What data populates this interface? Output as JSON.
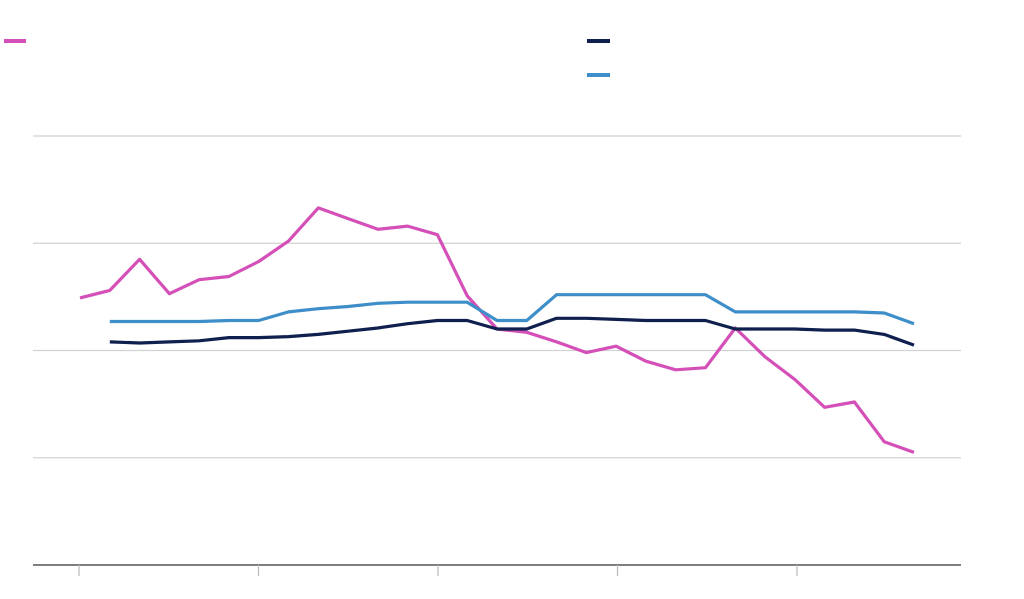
{
  "chart_data": {
    "type": "line",
    "title": "",
    "xlabel": "",
    "ylabel": "",
    "ylim": [
      0,
      4
    ],
    "y_gridlines": [
      1,
      2,
      3,
      4
    ],
    "grid": true,
    "legend_position": "top",
    "x_tick_count": 5,
    "series": [
      {
        "color": "#d44fb7",
        "x": [
          0,
          1,
          2,
          3,
          4,
          5,
          6,
          7,
          8,
          9,
          10,
          11,
          12,
          13,
          14,
          15,
          16,
          17,
          18,
          19,
          20,
          21,
          22,
          23,
          24,
          25,
          26,
          27,
          28
        ],
        "values": [
          2.49,
          2.56,
          2.85,
          2.53,
          2.66,
          2.69,
          2.83,
          3.02,
          3.33,
          3.23,
          3.13,
          3.16,
          3.08,
          2.51,
          2.2,
          2.17,
          2.08,
          1.98,
          2.04,
          1.9,
          1.82,
          1.84,
          2.21,
          1.94,
          1.73,
          1.47,
          1.52,
          1.15,
          1.05
        ]
      },
      {
        "color": "#0f1f4e",
        "x": [
          1,
          2,
          3,
          4,
          5,
          6,
          7,
          8,
          9,
          10,
          11,
          12,
          13,
          14,
          15,
          16,
          17,
          18,
          19,
          20,
          21,
          22,
          23,
          24,
          25,
          26,
          27,
          28
        ],
        "values": [
          2.08,
          2.07,
          2.08,
          2.09,
          2.12,
          2.12,
          2.13,
          2.15,
          2.18,
          2.21,
          2.25,
          2.28,
          2.28,
          2.2,
          2.2,
          2.3,
          2.3,
          2.29,
          2.28,
          2.28,
          2.28,
          2.2,
          2.2,
          2.2,
          2.19,
          2.19,
          2.15,
          2.05
        ]
      },
      {
        "color": "#3d8ec9",
        "x": [
          1,
          2,
          3,
          4,
          5,
          6,
          7,
          8,
          9,
          10,
          11,
          12,
          13,
          14,
          15,
          16,
          17,
          18,
          19,
          20,
          21,
          22,
          23,
          24,
          25,
          26,
          27,
          28
        ],
        "values": [
          2.27,
          2.27,
          2.27,
          2.27,
          2.28,
          2.28,
          2.36,
          2.39,
          2.41,
          2.44,
          2.45,
          2.45,
          2.45,
          2.28,
          2.28,
          2.52,
          2.52,
          2.52,
          2.52,
          2.52,
          2.52,
          2.36,
          2.36,
          2.36,
          2.36,
          2.36,
          2.35,
          2.25
        ]
      }
    ]
  }
}
